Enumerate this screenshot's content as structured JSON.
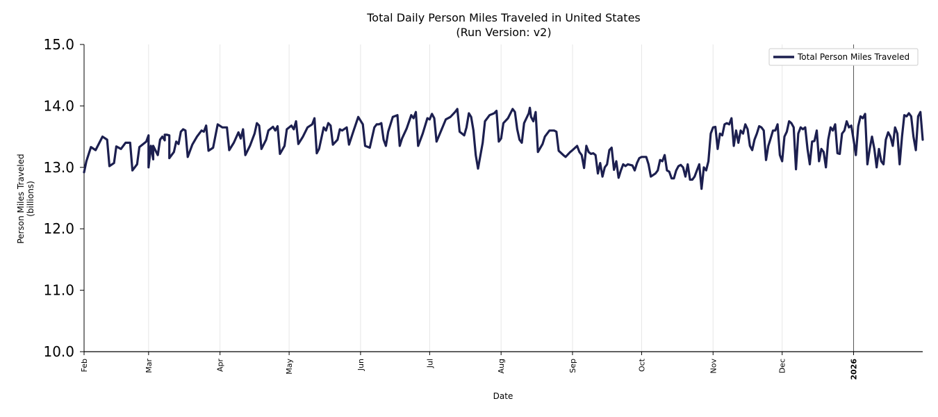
{
  "chart_data": {
    "type": "line",
    "title": "Total Daily Person Miles Traveled in United States",
    "subtitle": "(Run Version: v2)",
    "xlabel": "Date",
    "ylabel_line1": "Person Miles Traveled",
    "ylabel_line2": "(billions)",
    "ylim": [
      10.0,
      15.0
    ],
    "yticks": [
      10.0,
      11.0,
      12.0,
      13.0,
      14.0,
      15.0
    ],
    "xlim_days": [
      0,
      364
    ],
    "month_ticks": [
      {
        "label": "Feb",
        "day": 0,
        "bold": false
      },
      {
        "label": "Mar",
        "day": 28,
        "bold": false
      },
      {
        "label": "Apr",
        "day": 59,
        "bold": false
      },
      {
        "label": "May",
        "day": 89,
        "bold": false
      },
      {
        "label": "Jun",
        "day": 120,
        "bold": false
      },
      {
        "label": "Jul",
        "day": 150,
        "bold": false
      },
      {
        "label": "Aug",
        "day": 181,
        "bold": false
      },
      {
        "label": "Sep",
        "day": 212,
        "bold": false
      },
      {
        "label": "Oct",
        "day": 242,
        "bold": false
      },
      {
        "label": "Nov",
        "day": 273,
        "bold": false
      },
      {
        "label": "Dec",
        "day": 303,
        "bold": false
      },
      {
        "label": "2026",
        "day": 334,
        "bold": true
      }
    ],
    "year_marker_day": 334,
    "grid": "vertical",
    "legend": "top-right",
    "series": [
      {
        "name": "Total Person Miles Traveled",
        "color": "#1c1f4f",
        "keypoints": [
          [
            0,
            12.92
          ],
          [
            1,
            13.1
          ],
          [
            3,
            13.33
          ],
          [
            5,
            13.28
          ],
          [
            8,
            13.5
          ],
          [
            10,
            13.45
          ],
          [
            11,
            13.02
          ],
          [
            13,
            13.07
          ],
          [
            14,
            13.34
          ],
          [
            16,
            13.3
          ],
          [
            18,
            13.4
          ],
          [
            20,
            13.4
          ],
          [
            21,
            12.95
          ],
          [
            23,
            13.05
          ],
          [
            24,
            13.33
          ],
          [
            27,
            13.42
          ],
          [
            29,
            13.35
          ],
          [
            30,
            13.13
          ],
          [
            32,
            13.2
          ],
          [
            34,
            13.5
          ],
          [
            35,
            13.44
          ],
          [
            37,
            13.52
          ],
          [
            28,
            13.52
          ],
          [
            28,
            13.0
          ],
          [
            30,
            13.35
          ],
          [
            33,
            13.45
          ],
          [
            35,
            13.53
          ],
          [
            36,
            13.53
          ],
          [
            37,
            13.15
          ],
          [
            39,
            13.25
          ],
          [
            40,
            13.42
          ],
          [
            41,
            13.38
          ],
          [
            42,
            13.58
          ],
          [
            43,
            13.62
          ],
          [
            44,
            13.6
          ],
          [
            45,
            13.17
          ],
          [
            47,
            13.37
          ],
          [
            49,
            13.5
          ],
          [
            51,
            13.6
          ],
          [
            52,
            13.58
          ],
          [
            53,
            13.68
          ],
          [
            54,
            13.27
          ],
          [
            56,
            13.32
          ],
          [
            58,
            13.7
          ],
          [
            60,
            13.65
          ],
          [
            62,
            13.65
          ],
          [
            63,
            13.28
          ],
          [
            65,
            13.4
          ],
          [
            67,
            13.57
          ],
          [
            68,
            13.47
          ],
          [
            69,
            13.62
          ],
          [
            70,
            13.2
          ],
          [
            72,
            13.35
          ],
          [
            74,
            13.55
          ],
          [
            75,
            13.72
          ],
          [
            76,
            13.68
          ],
          [
            77,
            13.3
          ],
          [
            79,
            13.45
          ],
          [
            80,
            13.6
          ],
          [
            82,
            13.66
          ],
          [
            83,
            13.6
          ],
          [
            84,
            13.67
          ],
          [
            85,
            13.22
          ],
          [
            87,
            13.35
          ],
          [
            88,
            13.62
          ],
          [
            90,
            13.68
          ],
          [
            91,
            13.62
          ],
          [
            92,
            13.75
          ],
          [
            93,
            13.38
          ],
          [
            95,
            13.5
          ],
          [
            97,
            13.65
          ],
          [
            99,
            13.7
          ],
          [
            100,
            13.8
          ],
          [
            101,
            13.23
          ],
          [
            102,
            13.3
          ],
          [
            104,
            13.65
          ],
          [
            105,
            13.6
          ],
          [
            106,
            13.72
          ],
          [
            107,
            13.68
          ],
          [
            108,
            13.37
          ],
          [
            110,
            13.45
          ],
          [
            111,
            13.62
          ],
          [
            112,
            13.6
          ],
          [
            114,
            13.65
          ],
          [
            115,
            13.37
          ],
          [
            117,
            13.6
          ],
          [
            119,
            13.82
          ],
          [
            121,
            13.7
          ],
          [
            122,
            13.35
          ],
          [
            124,
            13.32
          ],
          [
            126,
            13.65
          ],
          [
            127,
            13.7
          ],
          [
            128,
            13.7
          ],
          [
            129,
            13.72
          ],
          [
            130,
            13.45
          ],
          [
            131,
            13.35
          ],
          [
            132,
            13.58
          ],
          [
            134,
            13.82
          ],
          [
            136,
            13.85
          ],
          [
            137,
            13.35
          ],
          [
            138,
            13.47
          ],
          [
            140,
            13.63
          ],
          [
            142,
            13.85
          ],
          [
            143,
            13.8
          ],
          [
            144,
            13.9
          ],
          [
            145,
            13.35
          ],
          [
            147,
            13.55
          ],
          [
            149,
            13.8
          ],
          [
            150,
            13.78
          ],
          [
            151,
            13.87
          ],
          [
            152,
            13.8
          ],
          [
            153,
            13.42
          ],
          [
            155,
            13.6
          ],
          [
            157,
            13.78
          ],
          [
            159,
            13.82
          ],
          [
            161,
            13.9
          ],
          [
            162,
            13.95
          ],
          [
            163,
            13.58
          ],
          [
            165,
            13.52
          ],
          [
            166,
            13.65
          ],
          [
            167,
            13.88
          ],
          [
            168,
            13.82
          ],
          [
            169,
            13.6
          ],
          [
            170,
            13.2
          ],
          [
            171,
            12.98
          ],
          [
            173,
            13.4
          ],
          [
            174,
            13.75
          ],
          [
            176,
            13.85
          ],
          [
            178,
            13.88
          ],
          [
            179,
            13.92
          ],
          [
            180,
            13.42
          ],
          [
            181,
            13.47
          ],
          [
            182,
            13.72
          ],
          [
            184,
            13.8
          ],
          [
            186,
            13.95
          ],
          [
            187,
            13.9
          ],
          [
            188,
            13.62
          ],
          [
            189,
            13.45
          ],
          [
            190,
            13.4
          ],
          [
            191,
            13.72
          ],
          [
            193,
            13.88
          ],
          [
            193.5,
            13.97
          ],
          [
            194,
            13.82
          ],
          [
            195,
            13.75
          ],
          [
            196,
            13.9
          ],
          [
            197,
            13.25
          ],
          [
            199,
            13.38
          ],
          [
            200,
            13.5
          ],
          [
            202,
            13.6
          ],
          [
            204,
            13.6
          ],
          [
            205,
            13.58
          ],
          [
            206,
            13.27
          ],
          [
            208,
            13.2
          ],
          [
            209,
            13.17
          ],
          [
            211,
            13.25
          ],
          [
            212,
            13.28
          ],
          [
            214,
            13.35
          ],
          [
            215,
            13.25
          ],
          [
            216,
            13.2
          ],
          [
            217,
            12.99
          ],
          [
            218,
            13.35
          ],
          [
            219,
            13.25
          ],
          [
            220,
            13.22
          ],
          [
            221,
            13.23
          ],
          [
            222,
            13.2
          ],
          [
            223,
            12.9
          ],
          [
            224,
            13.07
          ],
          [
            225,
            12.85
          ],
          [
            226,
            13.0
          ],
          [
            227,
            13.05
          ],
          [
            228,
            13.28
          ],
          [
            229,
            13.32
          ],
          [
            230,
            12.96
          ],
          [
            231,
            13.1
          ],
          [
            232,
            12.83
          ],
          [
            233,
            12.95
          ],
          [
            234,
            13.05
          ],
          [
            235,
            13.02
          ],
          [
            236,
            13.05
          ],
          [
            238,
            13.03
          ],
          [
            239,
            12.95
          ],
          [
            240,
            13.07
          ],
          [
            241,
            13.15
          ],
          [
            242,
            13.17
          ],
          [
            244,
            13.17
          ],
          [
            245,
            13.05
          ],
          [
            246,
            12.85
          ],
          [
            248,
            12.9
          ],
          [
            249,
            12.95
          ],
          [
            250,
            13.12
          ],
          [
            251,
            13.1
          ],
          [
            252,
            13.2
          ],
          [
            253,
            12.95
          ],
          [
            254,
            12.93
          ],
          [
            255,
            12.82
          ],
          [
            256,
            12.82
          ],
          [
            257,
            12.95
          ],
          [
            258,
            13.02
          ],
          [
            259,
            13.04
          ],
          [
            260,
            13.0
          ],
          [
            261,
            12.85
          ],
          [
            262,
            13.05
          ],
          [
            263,
            12.8
          ],
          [
            264,
            12.8
          ],
          [
            265,
            12.85
          ],
          [
            266,
            12.95
          ],
          [
            267,
            13.05
          ],
          [
            268,
            12.65
          ],
          [
            269,
            13.0
          ],
          [
            270,
            12.95
          ],
          [
            271,
            13.1
          ],
          [
            272,
            13.55
          ],
          [
            273,
            13.65
          ],
          [
            274,
            13.66
          ],
          [
            275,
            13.3
          ],
          [
            276,
            13.55
          ],
          [
            277,
            13.52
          ],
          [
            278,
            13.7
          ],
          [
            279,
            13.72
          ],
          [
            280,
            13.7
          ],
          [
            281,
            13.8
          ],
          [
            282,
            13.35
          ],
          [
            283,
            13.6
          ],
          [
            284,
            13.4
          ],
          [
            285,
            13.6
          ],
          [
            286,
            13.55
          ],
          [
            287,
            13.7
          ],
          [
            288,
            13.62
          ],
          [
            289,
            13.35
          ],
          [
            290,
            13.28
          ],
          [
            291,
            13.45
          ],
          [
            292,
            13.55
          ],
          [
            293,
            13.67
          ],
          [
            294,
            13.65
          ],
          [
            295,
            13.6
          ],
          [
            296,
            13.12
          ],
          [
            297,
            13.35
          ],
          [
            298,
            13.47
          ],
          [
            299,
            13.6
          ],
          [
            300,
            13.6
          ],
          [
            301,
            13.7
          ],
          [
            302,
            13.2
          ],
          [
            303,
            13.1
          ],
          [
            304,
            13.5
          ],
          [
            305,
            13.58
          ],
          [
            306,
            13.75
          ],
          [
            307,
            13.72
          ],
          [
            308,
            13.65
          ],
          [
            309,
            12.97
          ],
          [
            310,
            13.55
          ],
          [
            311,
            13.65
          ],
          [
            312,
            13.62
          ],
          [
            313,
            13.65
          ],
          [
            314,
            13.3
          ],
          [
            315,
            13.05
          ],
          [
            316,
            13.42
          ],
          [
            317,
            13.43
          ],
          [
            318,
            13.6
          ],
          [
            319,
            13.1
          ],
          [
            320,
            13.3
          ],
          [
            321,
            13.25
          ],
          [
            322,
            13.0
          ],
          [
            323,
            13.45
          ],
          [
            324,
            13.65
          ],
          [
            325,
            13.6
          ],
          [
            326,
            13.7
          ],
          [
            327,
            13.23
          ],
          [
            328,
            13.22
          ],
          [
            329,
            13.55
          ],
          [
            330,
            13.6
          ],
          [
            331,
            13.75
          ],
          [
            332,
            13.65
          ],
          [
            333,
            13.68
          ],
          [
            334,
            13.45
          ],
          [
            335,
            13.2
          ],
          [
            336,
            13.67
          ],
          [
            337,
            13.83
          ],
          [
            338,
            13.8
          ],
          [
            339,
            13.87
          ],
          [
            340,
            13.05
          ],
          [
            341,
            13.3
          ],
          [
            342,
            13.5
          ],
          [
            343,
            13.3
          ],
          [
            344,
            13.0
          ],
          [
            345,
            13.3
          ],
          [
            346,
            13.1
          ],
          [
            347,
            13.05
          ],
          [
            348,
            13.45
          ],
          [
            349,
            13.57
          ],
          [
            350,
            13.5
          ],
          [
            351,
            13.35
          ],
          [
            352,
            13.65
          ],
          [
            353,
            13.55
          ],
          [
            354,
            13.05
          ],
          [
            355,
            13.5
          ],
          [
            356,
            13.85
          ],
          [
            357,
            13.83
          ],
          [
            358,
            13.88
          ],
          [
            359,
            13.83
          ],
          [
            360,
            13.5
          ],
          [
            361,
            13.28
          ],
          [
            362,
            13.83
          ],
          [
            363,
            13.9
          ],
          [
            364,
            13.45
          ]
        ]
      }
    ]
  }
}
